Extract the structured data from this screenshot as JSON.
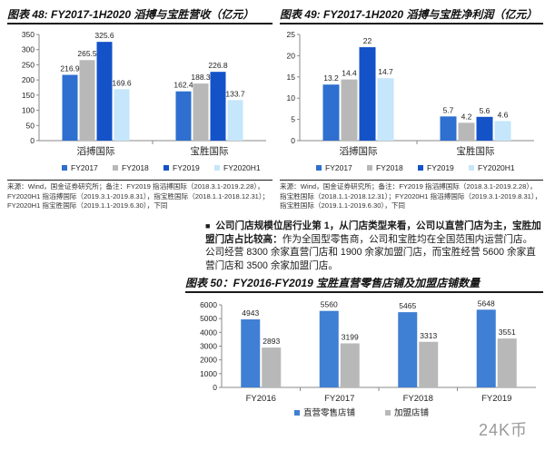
{
  "page": {
    "top_strip_text": "……………………………………………………………………………………",
    "watermark": "24K币"
  },
  "fig48": {
    "title": "图表 48: FY2017-1H2020 滔搏与宝胜营收（亿元）",
    "source": "来源：Wind，国金证券研究所；备注：FY2019 指滔搏国际（2018.3.1-2019.2.28），FY2020H1 指滔搏国际（2019.3.1-2019.8.31），指宝胜国际（2018.1.1-2018.12.31）；FY2020H1 指宝胜国际（2019.1.1-2019.6.30），下同"
  },
  "fig49": {
    "title": "图表 49: FY2017-1H2020 滔搏与宝胜净利润（亿元）",
    "source": "来源：Wind，国金证券研究所；备注：FY2019 指滔搏国际（2018.3.1-2019.2.28），指宝胜国际（2018.1.1-2018.12.31）；FY2020H1 指滔搏国际（2019.3.1-2019.8.31），指宝胜国际（2019.1.1-2019.6.30），下同"
  },
  "fig50": {
    "title": "图表 50：FY2016-FY2019 宝胜直营零售店铺及加盟店铺数量"
  },
  "paragraph": {
    "bullet": "■",
    "bold": "公司门店规模位居行业第 1，从门店类型来看，公司以直营门店为主，宝胜加盟门店占比较高：",
    "text": "作为全国型零售商，公司和宝胜均在全国范围内运营门店。公司经营 8300 余家直营门店和 1900 余家加盟门店，而宝胜经营 5600 余家直营门店和 3500 余家加盟门店。"
  },
  "colors": {
    "fy2017": "#2e6fd0",
    "fy2018": "#b8b8b8",
    "fy2019": "#1452c8",
    "fy2020h1": "#c5e6fb",
    "direct": "#3f7fd4",
    "franchise": "#b8b8b8",
    "axis": "#8a8a8a",
    "text": "#222222"
  },
  "chart_data": [
    {
      "type": "bar",
      "id": "fig48",
      "categories": [
        "滔搏国际",
        "宝胜国际"
      ],
      "series": [
        {
          "name": "FY2017",
          "values": [
            216.9,
            162.4
          ]
        },
        {
          "name": "FY2018",
          "values": [
            265.5,
            188.3
          ]
        },
        {
          "name": "FY2019",
          "values": [
            325.6,
            226.8
          ]
        },
        {
          "name": "FY2020H1",
          "values": [
            169.6,
            133.7
          ]
        }
      ],
      "yticks": [
        "0",
        "50",
        "100",
        "150",
        "200",
        "250",
        "300",
        "350"
      ],
      "ylim": [
        0,
        350
      ],
      "legend": "bottom"
    },
    {
      "type": "bar",
      "id": "fig49",
      "categories": [
        "滔搏国际",
        "宝胜国际"
      ],
      "series": [
        {
          "name": "FY2017",
          "values": [
            13.2,
            5.7
          ]
        },
        {
          "name": "FY2018",
          "values": [
            14.4,
            4.2
          ]
        },
        {
          "name": "FY2019",
          "values": [
            22.0,
            5.6
          ]
        },
        {
          "name": "FY2020H1",
          "values": [
            14.7,
            4.6
          ]
        }
      ],
      "yticks": [
        "0",
        "5",
        "10",
        "15",
        "20",
        "25"
      ],
      "ylim": [
        0,
        25
      ],
      "legend": "bottom"
    },
    {
      "type": "bar",
      "id": "fig50",
      "categories": [
        "FY2016",
        "FY2017",
        "FY2018",
        "FY2019"
      ],
      "series": [
        {
          "name": "直营零售店铺",
          "values": [
            4943,
            5560,
            5465,
            5648
          ]
        },
        {
          "name": "加盟店铺",
          "values": [
            2893,
            3199,
            3313,
            3551
          ]
        }
      ],
      "yticks": [
        "0",
        "1000",
        "2000",
        "3000",
        "4000",
        "5000",
        "6000"
      ],
      "ylim": [
        0,
        6000
      ],
      "legend": "bottom"
    }
  ]
}
